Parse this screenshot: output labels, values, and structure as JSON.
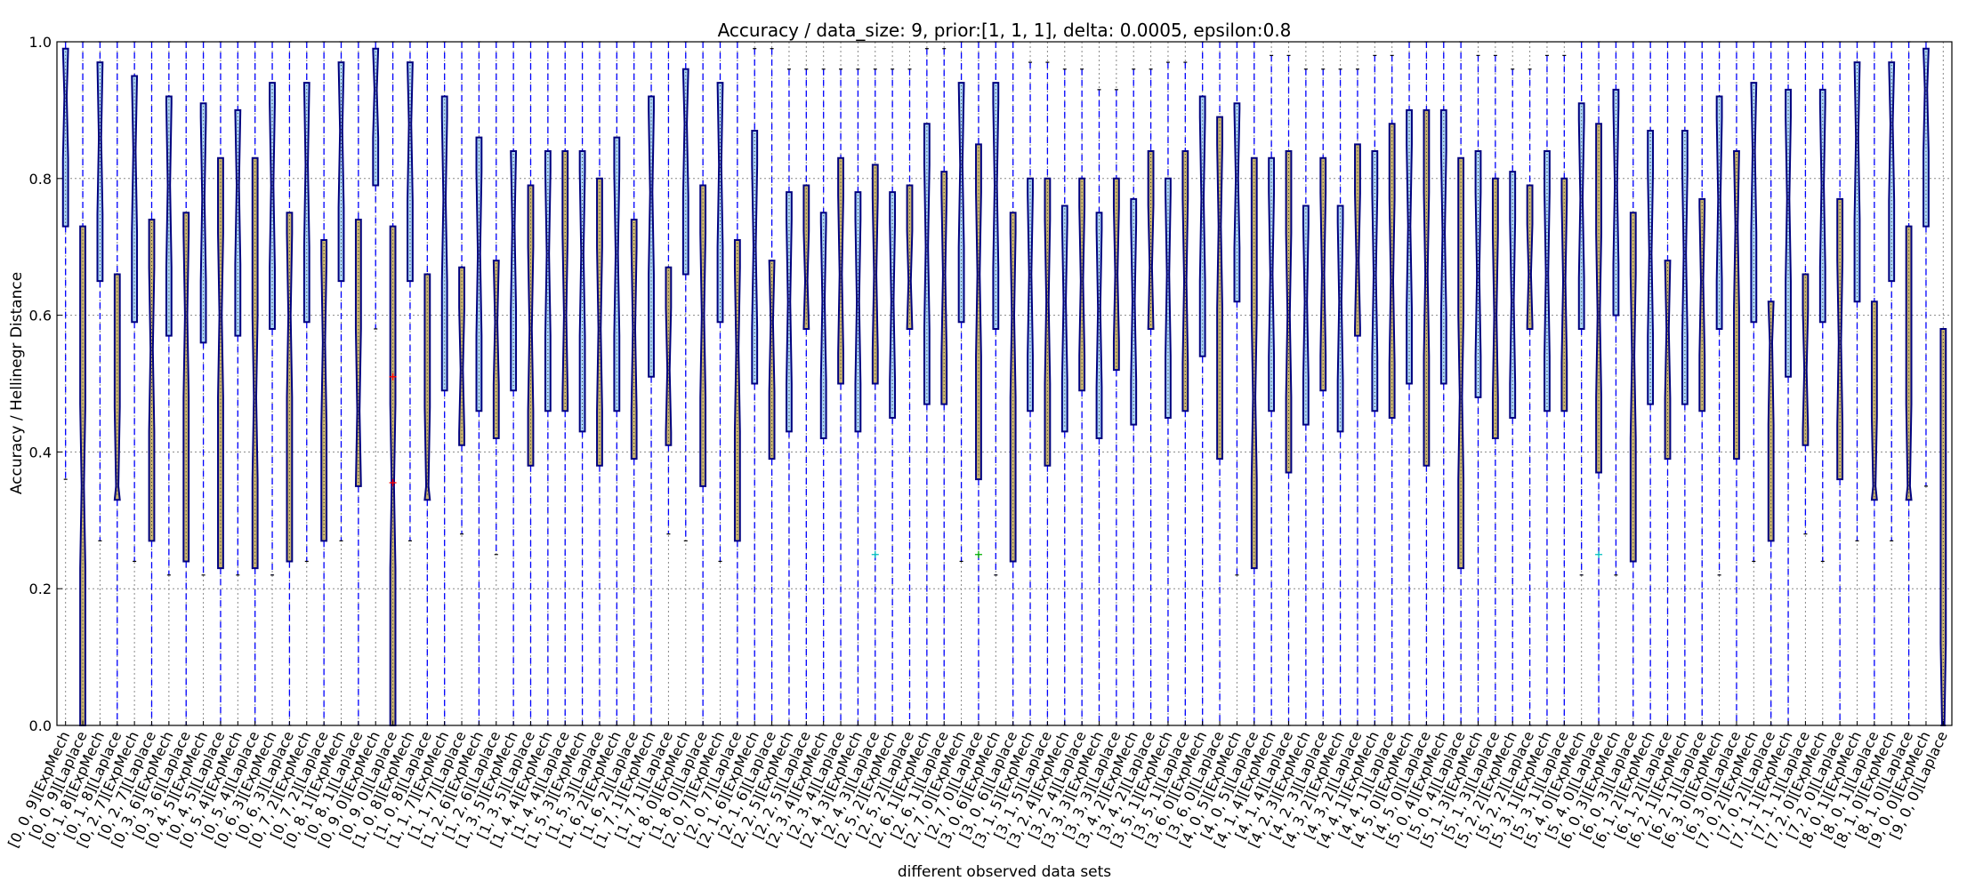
{
  "chart_data": {
    "type": "boxplot",
    "title": "Accuracy / data_size: 9, prior:[1, 1, 1], delta: 0.0005, epsilon:0.8",
    "xlabel": "different observed data sets",
    "ylabel": "Accuracy / Hellinegr Distance",
    "ylim": [
      0.0,
      1.0
    ],
    "yticks": [
      "0.0",
      "0.2",
      "0.4",
      "0.6",
      "0.8",
      "1.0"
    ],
    "grid": "dotted",
    "colors": {
      "ExpMech": "#aad4f5",
      "Laplace": "#c8b46e",
      "whisker": "#0000ff",
      "box_edge": "#00007f"
    },
    "datasets": [
      {
        "name": "[0, 0, 9]",
        "expmech": {
          "q1": 0.73,
          "med": 0.92,
          "q3": 0.99,
          "lo": 0.36,
          "hi": 1.0
        },
        "laplace": {
          "q1": 0.0,
          "med": 0.35,
          "q3": 0.73,
          "lo": 0.0,
          "hi": 1.0
        }
      },
      {
        "name": "[0, 1, 8]",
        "expmech": {
          "q1": 0.65,
          "med": 0.86,
          "q3": 0.97,
          "lo": 0.27,
          "hi": 1.0
        },
        "laplace": {
          "q1": 0.33,
          "med": 0.35,
          "q3": 0.66,
          "lo": 0.0,
          "hi": 1.0
        }
      },
      {
        "name": "[0, 2, 7]",
        "expmech": {
          "q1": 0.59,
          "med": 0.84,
          "q3": 0.95,
          "lo": 0.24,
          "hi": 1.0
        },
        "laplace": {
          "q1": 0.27,
          "med": 0.55,
          "q3": 0.74,
          "lo": 0.0,
          "hi": 1.0
        }
      },
      {
        "name": "[0, 3, 6]",
        "expmech": {
          "q1": 0.57,
          "med": 0.79,
          "q3": 0.92,
          "lo": 0.22,
          "hi": 1.0
        },
        "laplace": {
          "q1": 0.24,
          "med": 0.6,
          "q3": 0.75,
          "lo": 0.0,
          "hi": 1.0
        }
      },
      {
        "name": "[0, 4, 5]",
        "expmech": {
          "q1": 0.56,
          "med": 0.77,
          "q3": 0.91,
          "lo": 0.22,
          "hi": 1.0
        },
        "laplace": {
          "q1": 0.23,
          "med": 0.6,
          "q3": 0.83,
          "lo": 0.0,
          "hi": 1.0
        }
      },
      {
        "name": "[0, 5, 4]",
        "expmech": {
          "q1": 0.57,
          "med": 0.79,
          "q3": 0.9,
          "lo": 0.22,
          "hi": 1.0
        },
        "laplace": {
          "q1": 0.23,
          "med": 0.48,
          "q3": 0.83,
          "lo": 0.0,
          "hi": 1.0
        }
      },
      {
        "name": "[0, 6, 3]",
        "expmech": {
          "q1": 0.58,
          "med": 0.79,
          "q3": 0.94,
          "lo": 0.22,
          "hi": 1.0
        },
        "laplace": {
          "q1": 0.24,
          "med": 0.6,
          "q3": 0.75,
          "lo": 0.0,
          "hi": 1.0
        }
      },
      {
        "name": "[0, 7, 2]",
        "expmech": {
          "q1": 0.59,
          "med": 0.82,
          "q3": 0.94,
          "lo": 0.24,
          "hi": 1.0
        },
        "laplace": {
          "q1": 0.27,
          "med": 0.56,
          "q3": 0.71,
          "lo": 0.0,
          "hi": 1.0
        }
      },
      {
        "name": "[0, 8, 1]",
        "expmech": {
          "q1": 0.65,
          "med": 0.87,
          "q3": 0.97,
          "lo": 0.27,
          "hi": 1.0
        },
        "laplace": {
          "q1": 0.35,
          "med": 0.46,
          "q3": 0.74,
          "lo": 0.0,
          "hi": 1.0
        }
      },
      {
        "name": "[0, 9, 0]",
        "expmech": {
          "q1": 0.79,
          "med": 0.93,
          "q3": 0.99,
          "lo": 0.58,
          "hi": 1.0
        },
        "laplace": {
          "q1": 0.0,
          "med": 0.35,
          "q3": 0.73,
          "lo": 0.0,
          "hi": 1.0
        }
      },
      {
        "name": "[1, 0, 8]",
        "expmech": {
          "q1": 0.65,
          "med": 0.88,
          "q3": 0.97,
          "lo": 0.27,
          "hi": 1.0
        },
        "laplace": {
          "q1": 0.33,
          "med": 0.35,
          "q3": 0.66,
          "lo": 0.0,
          "hi": 1.0
        }
      },
      {
        "name": "[1, 1, 7]",
        "expmech": {
          "q1": 0.49,
          "med": 0.77,
          "q3": 0.92,
          "lo": 0.0,
          "hi": 1.0
        },
        "laplace": {
          "q1": 0.41,
          "med": 0.52,
          "q3": 0.67,
          "lo": 0.28,
          "hi": 1.0
        }
      },
      {
        "name": "[1, 2, 6]",
        "expmech": {
          "q1": 0.46,
          "med": 0.69,
          "q3": 0.86,
          "lo": 0.0,
          "hi": 1.0
        },
        "laplace": {
          "q1": 0.42,
          "med": 0.59,
          "q3": 0.68,
          "lo": 0.25,
          "hi": 1.0
        }
      },
      {
        "name": "[1, 3, 5]",
        "expmech": {
          "q1": 0.49,
          "med": 0.73,
          "q3": 0.84,
          "lo": 0.0,
          "hi": 1.0
        },
        "laplace": {
          "q1": 0.38,
          "med": 0.58,
          "q3": 0.79,
          "lo": 0.0,
          "hi": 1.0
        }
      },
      {
        "name": "[1, 4, 4]",
        "expmech": {
          "q1": 0.46,
          "med": 0.69,
          "q3": 0.84,
          "lo": 0.0,
          "hi": 1.0
        },
        "laplace": {
          "q1": 0.46,
          "med": 0.6,
          "q3": 0.84,
          "lo": 0.0,
          "hi": 1.0
        }
      },
      {
        "name": "[1, 5, 3]",
        "expmech": {
          "q1": 0.43,
          "med": 0.69,
          "q3": 0.84,
          "lo": 0.0,
          "hi": 1.0
        },
        "laplace": {
          "q1": 0.38,
          "med": 0.58,
          "q3": 0.8,
          "lo": 0.0,
          "hi": 1.0
        }
      },
      {
        "name": "[1, 6, 2]",
        "expmech": {
          "q1": 0.46,
          "med": 0.69,
          "q3": 0.86,
          "lo": 0.0,
          "hi": 1.0
        },
        "laplace": {
          "q1": 0.39,
          "med": 0.58,
          "q3": 0.74,
          "lo": 0.0,
          "hi": 1.0
        }
      },
      {
        "name": "[1, 7, 1]",
        "expmech": {
          "q1": 0.51,
          "med": 0.78,
          "q3": 0.92,
          "lo": 0.0,
          "hi": 1.0
        },
        "laplace": {
          "q1": 0.41,
          "med": 0.52,
          "q3": 0.67,
          "lo": 0.28,
          "hi": 1.0
        }
      },
      {
        "name": "[1, 8, 0]",
        "expmech": {
          "q1": 0.66,
          "med": 0.88,
          "q3": 0.96,
          "lo": 0.27,
          "hi": 1.0
        },
        "laplace": {
          "q1": 0.35,
          "med": 0.6,
          "q3": 0.79,
          "lo": 0.0,
          "hi": 1.0
        }
      },
      {
        "name": "[2, 0, 7]",
        "expmech": {
          "q1": 0.59,
          "med": 0.82,
          "q3": 0.94,
          "lo": 0.24,
          "hi": 1.0
        },
        "laplace": {
          "q1": 0.27,
          "med": 0.55,
          "q3": 0.71,
          "lo": 0.0,
          "hi": 1.0
        }
      },
      {
        "name": "[2, 1, 6]",
        "expmech": {
          "q1": 0.5,
          "med": 0.7,
          "q3": 0.87,
          "lo": 0.0,
          "hi": 0.99
        },
        "laplace": {
          "q1": 0.39,
          "med": 0.59,
          "q3": 0.68,
          "lo": 0.0,
          "hi": 0.99
        }
      },
      {
        "name": "[2, 2, 5]",
        "expmech": {
          "q1": 0.43,
          "med": 0.62,
          "q3": 0.78,
          "lo": 0.0,
          "hi": 0.96
        },
        "laplace": {
          "q1": 0.58,
          "med": 0.65,
          "q3": 0.79,
          "lo": 0.0,
          "hi": 0.96
        }
      },
      {
        "name": "[2, 3, 4]",
        "expmech": {
          "q1": 0.42,
          "med": 0.62,
          "q3": 0.75,
          "lo": 0.0,
          "hi": 0.96
        },
        "laplace": {
          "q1": 0.5,
          "med": 0.66,
          "q3": 0.83,
          "lo": 0.0,
          "hi": 0.96
        }
      },
      {
        "name": "[2, 4, 3]",
        "expmech": {
          "q1": 0.43,
          "med": 0.62,
          "q3": 0.78,
          "lo": 0.0,
          "hi": 0.96
        },
        "laplace": {
          "q1": 0.5,
          "med": 0.66,
          "q3": 0.82,
          "lo": 0.0,
          "hi": 0.96
        }
      },
      {
        "name": "[2, 5, 2]",
        "expmech": {
          "q1": 0.45,
          "med": 0.62,
          "q3": 0.78,
          "lo": 0.0,
          "hi": 0.96
        },
        "laplace": {
          "q1": 0.58,
          "med": 0.65,
          "q3": 0.79,
          "lo": 0.0,
          "hi": 0.96
        }
      },
      {
        "name": "[2, 6, 1]",
        "expmech": {
          "q1": 0.47,
          "med": 0.7,
          "q3": 0.88,
          "lo": 0.0,
          "hi": 0.99
        },
        "laplace": {
          "q1": 0.47,
          "med": 0.66,
          "q3": 0.81,
          "lo": 0.0,
          "hi": 0.99
        }
      },
      {
        "name": "[2, 7, 0]",
        "expmech": {
          "q1": 0.59,
          "med": 0.82,
          "q3": 0.94,
          "lo": 0.24,
          "hi": 1.0
        },
        "laplace": {
          "q1": 0.36,
          "med": 0.66,
          "q3": 0.85,
          "lo": 0.0,
          "hi": 1.0
        }
      },
      {
        "name": "[3, 0, 6]",
        "expmech": {
          "q1": 0.58,
          "med": 0.79,
          "q3": 0.94,
          "lo": 0.22,
          "hi": 1.0
        },
        "laplace": {
          "q1": 0.24,
          "med": 0.6,
          "q3": 0.75,
          "lo": 0.0,
          "hi": 1.0
        }
      },
      {
        "name": "[3, 1, 5]",
        "expmech": {
          "q1": 0.46,
          "med": 0.66,
          "q3": 0.8,
          "lo": 0.0,
          "hi": 0.97
        },
        "laplace": {
          "q1": 0.38,
          "med": 0.62,
          "q3": 0.8,
          "lo": 0.0,
          "hi": 0.97
        }
      },
      {
        "name": "[3, 2, 4]",
        "expmech": {
          "q1": 0.43,
          "med": 0.62,
          "q3": 0.76,
          "lo": 0.0,
          "hi": 0.96
        },
        "laplace": {
          "q1": 0.49,
          "med": 0.65,
          "q3": 0.8,
          "lo": 0.0,
          "hi": 0.96
        }
      },
      {
        "name": "[3, 3, 3]",
        "expmech": {
          "q1": 0.42,
          "med": 0.61,
          "q3": 0.75,
          "lo": 0.0,
          "hi": 0.93
        },
        "laplace": {
          "q1": 0.52,
          "med": 0.66,
          "q3": 0.8,
          "lo": 0.0,
          "hi": 0.93
        }
      },
      {
        "name": "[3, 4, 2]",
        "expmech": {
          "q1": 0.44,
          "med": 0.62,
          "q3": 0.77,
          "lo": 0.0,
          "hi": 0.96
        },
        "laplace": {
          "q1": 0.58,
          "med": 0.67,
          "q3": 0.84,
          "lo": 0.0,
          "hi": 0.96
        }
      },
      {
        "name": "[3, 5, 1]",
        "expmech": {
          "q1": 0.45,
          "med": 0.66,
          "q3": 0.8,
          "lo": 0.0,
          "hi": 0.97
        },
        "laplace": {
          "q1": 0.46,
          "med": 0.65,
          "q3": 0.84,
          "lo": 0.0,
          "hi": 0.97
        }
      },
      {
        "name": "[3, 6, 0]",
        "expmech": {
          "q1": 0.54,
          "med": 0.77,
          "q3": 0.92,
          "lo": 0.0,
          "hi": 1.0
        },
        "laplace": {
          "q1": 0.39,
          "med": 0.73,
          "q3": 0.89,
          "lo": 0.0,
          "hi": 1.0
        }
      },
      {
        "name": "[4, 0, 5]",
        "expmech": {
          "q1": 0.62,
          "med": 0.8,
          "q3": 0.91,
          "lo": 0.22,
          "hi": 1.0
        },
        "laplace": {
          "q1": 0.23,
          "med": 0.48,
          "q3": 0.83,
          "lo": 0.0,
          "hi": 1.0
        }
      },
      {
        "name": "[4, 1, 4]",
        "expmech": {
          "q1": 0.46,
          "med": 0.66,
          "q3": 0.83,
          "lo": 0.0,
          "hi": 0.98
        },
        "laplace": {
          "q1": 0.37,
          "med": 0.6,
          "q3": 0.84,
          "lo": 0.0,
          "hi": 0.98
        }
      },
      {
        "name": "[4, 2, 3]",
        "expmech": {
          "q1": 0.44,
          "med": 0.62,
          "q3": 0.76,
          "lo": 0.0,
          "hi": 0.96
        },
        "laplace": {
          "q1": 0.49,
          "med": 0.66,
          "q3": 0.83,
          "lo": 0.0,
          "hi": 0.96
        }
      },
      {
        "name": "[4, 3, 2]",
        "expmech": {
          "q1": 0.43,
          "med": 0.62,
          "q3": 0.76,
          "lo": 0.0,
          "hi": 0.96
        },
        "laplace": {
          "q1": 0.57,
          "med": 0.68,
          "q3": 0.85,
          "lo": 0.0,
          "hi": 0.96
        }
      },
      {
        "name": "[4, 4, 1]",
        "expmech": {
          "q1": 0.46,
          "med": 0.66,
          "q3": 0.84,
          "lo": 0.0,
          "hi": 0.98
        },
        "laplace": {
          "q1": 0.45,
          "med": 0.65,
          "q3": 0.88,
          "lo": 0.0,
          "hi": 0.98
        }
      },
      {
        "name": "[4, 5, 0]",
        "expmech": {
          "q1": 0.5,
          "med": 0.73,
          "q3": 0.9,
          "lo": 0.0,
          "hi": 1.0
        },
        "laplace": {
          "q1": 0.38,
          "med": 0.66,
          "q3": 0.9,
          "lo": 0.0,
          "hi": 1.0
        }
      },
      {
        "name": "[5, 0, 4]",
        "expmech": {
          "q1": 0.5,
          "med": 0.72,
          "q3": 0.9,
          "lo": 0.0,
          "hi": 1.0
        },
        "laplace": {
          "q1": 0.23,
          "med": 0.48,
          "q3": 0.83,
          "lo": 0.0,
          "hi": 1.0
        }
      },
      {
        "name": "[5, 1, 3]",
        "expmech": {
          "q1": 0.48,
          "med": 0.66,
          "q3": 0.84,
          "lo": 0.0,
          "hi": 0.98
        },
        "laplace": {
          "q1": 0.42,
          "med": 0.6,
          "q3": 0.8,
          "lo": 0.0,
          "hi": 0.98
        }
      },
      {
        "name": "[5, 2, 2]",
        "expmech": {
          "q1": 0.45,
          "med": 0.62,
          "q3": 0.81,
          "lo": 0.0,
          "hi": 0.96
        },
        "laplace": {
          "q1": 0.58,
          "med": 0.66,
          "q3": 0.79,
          "lo": 0.0,
          "hi": 0.96
        }
      },
      {
        "name": "[5, 3, 1]",
        "expmech": {
          "q1": 0.46,
          "med": 0.66,
          "q3": 0.84,
          "lo": 0.0,
          "hi": 0.98
        },
        "laplace": {
          "q1": 0.46,
          "med": 0.65,
          "q3": 0.8,
          "lo": 0.0,
          "hi": 0.98
        }
      },
      {
        "name": "[5, 4, 0]",
        "expmech": {
          "q1": 0.58,
          "med": 0.77,
          "q3": 0.91,
          "lo": 0.22,
          "hi": 1.0
        },
        "laplace": {
          "q1": 0.37,
          "med": 0.6,
          "q3": 0.88,
          "lo": 0.0,
          "hi": 1.0
        }
      },
      {
        "name": "[6, 0, 3]",
        "expmech": {
          "q1": 0.6,
          "med": 0.79,
          "q3": 0.93,
          "lo": 0.22,
          "hi": 1.0
        },
        "laplace": {
          "q1": 0.24,
          "med": 0.54,
          "q3": 0.75,
          "lo": 0.0,
          "hi": 1.0
        }
      },
      {
        "name": "[6, 1, 2]",
        "expmech": {
          "q1": 0.47,
          "med": 0.69,
          "q3": 0.87,
          "lo": 0.0,
          "hi": 1.0
        },
        "laplace": {
          "q1": 0.39,
          "med": 0.58,
          "q3": 0.68,
          "lo": 0.0,
          "hi": 1.0
        }
      },
      {
        "name": "[6, 2, 1]",
        "expmech": {
          "q1": 0.47,
          "med": 0.69,
          "q3": 0.87,
          "lo": 0.0,
          "hi": 1.0
        },
        "laplace": {
          "q1": 0.46,
          "med": 0.65,
          "q3": 0.77,
          "lo": 0.0,
          "hi": 1.0
        }
      },
      {
        "name": "[6, 3, 0]",
        "expmech": {
          "q1": 0.58,
          "med": 0.77,
          "q3": 0.92,
          "lo": 0.22,
          "hi": 1.0
        },
        "laplace": {
          "q1": 0.39,
          "med": 0.73,
          "q3": 0.84,
          "lo": 0.0,
          "hi": 1.0
        }
      },
      {
        "name": "[7, 0, 2]",
        "expmech": {
          "q1": 0.59,
          "med": 0.84,
          "q3": 0.94,
          "lo": 0.24,
          "hi": 1.0
        },
        "laplace": {
          "q1": 0.27,
          "med": 0.56,
          "q3": 0.62,
          "lo": 0.0,
          "hi": 1.0
        }
      },
      {
        "name": "[7, 1, 1]",
        "expmech": {
          "q1": 0.51,
          "med": 0.77,
          "q3": 0.93,
          "lo": 0.0,
          "hi": 1.0
        },
        "laplace": {
          "q1": 0.41,
          "med": 0.52,
          "q3": 0.66,
          "lo": 0.28,
          "hi": 1.0
        }
      },
      {
        "name": "[7, 2, 0]",
        "expmech": {
          "q1": 0.59,
          "med": 0.79,
          "q3": 0.93,
          "lo": 0.24,
          "hi": 1.0
        },
        "laplace": {
          "q1": 0.36,
          "med": 0.56,
          "q3": 0.77,
          "lo": 0.0,
          "hi": 1.0
        }
      },
      {
        "name": "[8, 0, 1]",
        "expmech": {
          "q1": 0.62,
          "med": 0.86,
          "q3": 0.97,
          "lo": 0.27,
          "hi": 1.0
        },
        "laplace": {
          "q1": 0.33,
          "med": 0.35,
          "q3": 0.62,
          "lo": 0.0,
          "hi": 1.0
        }
      },
      {
        "name": "[8, 1, 0]",
        "expmech": {
          "q1": 0.65,
          "med": 0.88,
          "q3": 0.97,
          "lo": 0.27,
          "hi": 1.0
        },
        "laplace": {
          "q1": 0.33,
          "med": 0.35,
          "q3": 0.73,
          "lo": 0.0,
          "hi": 1.0
        }
      },
      {
        "name": "[9, 0, 0]",
        "expmech": {
          "q1": 0.73,
          "med": 0.93,
          "q3": 0.99,
          "lo": 0.35,
          "hi": 1.0
        },
        "laplace": {
          "q1": 0.0,
          "med": 0.0,
          "q3": 0.58,
          "lo": 0.0,
          "hi": 0.58
        }
      }
    ],
    "fliers": [
      {
        "category": 19,
        "value": 0.51,
        "color": "#ff0000"
      },
      {
        "category": 19,
        "value": 0.355,
        "color": "#ff0000"
      },
      {
        "category": 47,
        "value": 0.25,
        "color": "#00c0c0"
      },
      {
        "category": 53,
        "value": 0.25,
        "color": "#00b000"
      },
      {
        "category": 89,
        "value": 0.25,
        "color": "#00c0c0"
      }
    ]
  }
}
